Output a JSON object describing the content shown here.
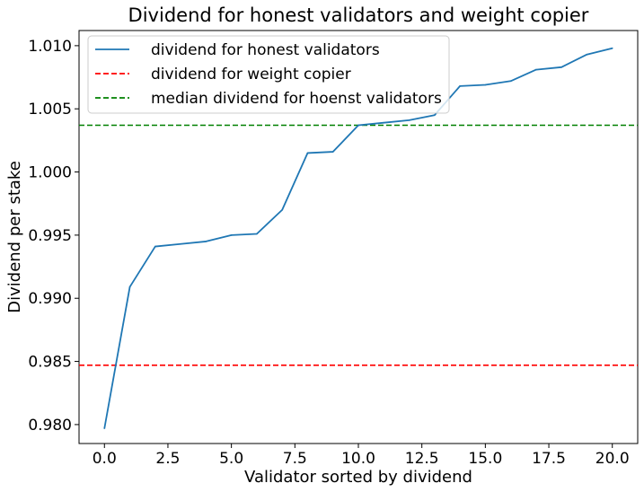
{
  "chart_data": {
    "type": "line",
    "title": "Dividend for honest validators and weight copier",
    "xlabel": "Validator sorted by dividend",
    "ylabel": "Dividend per stake",
    "xlim": [
      -1.0,
      21.0
    ],
    "ylim": [
      0.9785,
      1.0112
    ],
    "xticks": [
      0.0,
      2.5,
      5.0,
      7.5,
      10.0,
      12.5,
      15.0,
      17.5,
      20.0
    ],
    "xtick_labels": [
      "0.0",
      "2.5",
      "5.0",
      "7.5",
      "10.0",
      "12.5",
      "15.0",
      "17.5",
      "20.0"
    ],
    "yticks": [
      0.98,
      0.985,
      0.99,
      0.995,
      1.0,
      1.005,
      1.01
    ],
    "ytick_labels": [
      "0.980",
      "0.985",
      "0.990",
      "0.995",
      "1.000",
      "1.005",
      "1.010"
    ],
    "grid": false,
    "legend_position": "upper-left",
    "series": [
      {
        "name": "dividend for honest validators",
        "style": "solid",
        "color": "#1f77b4",
        "x": [
          0,
          1,
          2,
          3,
          4,
          5,
          6,
          7,
          8,
          9,
          10,
          11,
          12,
          13,
          14,
          15,
          16,
          17,
          18,
          19,
          20
        ],
        "y": [
          0.9797,
          0.9909,
          0.9941,
          0.9943,
          0.9945,
          0.995,
          0.9951,
          0.997,
          1.0015,
          1.0016,
          1.0037,
          1.0039,
          1.0041,
          1.0045,
          1.0068,
          1.0069,
          1.0072,
          1.0081,
          1.0083,
          1.0093,
          1.0098
        ]
      },
      {
        "name": "dividend for weight copier",
        "style": "dashed",
        "color": "#ff0000",
        "hline": 0.9847
      },
      {
        "name": "median dividend for hoenst validators",
        "style": "dashed",
        "color": "#008000",
        "hline": 1.0037
      }
    ]
  }
}
